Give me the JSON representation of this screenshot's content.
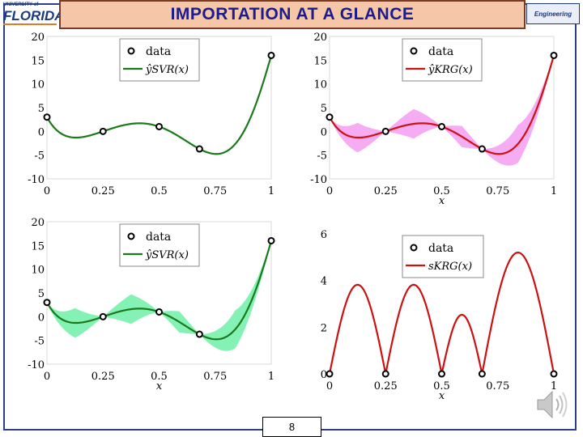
{
  "slide": {
    "title": "IMPORTATION AT A GLANCE",
    "page_number": "8",
    "logo_left_small": "UNIVERSITY of",
    "logo_left_big": "FLORIDA",
    "logo_right": "Engineering",
    "speaker_icon": "speaker-icon"
  },
  "chart_data": [
    {
      "type": "line",
      "id": "tl",
      "xticks": [
        "0",
        "0.25",
        "0.5",
        "0.75",
        "1"
      ],
      "yticks": [
        "20",
        "15",
        "10",
        "5",
        "0",
        "-5",
        "-10"
      ],
      "xlim": [
        0,
        1
      ],
      "ylim": [
        -10,
        20
      ],
      "xlabel": "",
      "legend": {
        "position": "top-center",
        "entries": [
          "data",
          "ŷSVR(x)"
        ]
      },
      "curve_color": "#1a7a1a",
      "band": false,
      "data_points": {
        "x": [
          0,
          0.25,
          0.5,
          0.68,
          1
        ],
        "y": [
          3,
          0,
          1,
          -3.7,
          16
        ]
      }
    },
    {
      "type": "line",
      "id": "tr",
      "xticks": [
        "0",
        "0.25",
        "0.5",
        "0.75",
        "1"
      ],
      "yticks": [
        "20",
        "15",
        "10",
        "5",
        "0",
        "-5",
        "-10"
      ],
      "xlim": [
        0,
        1
      ],
      "ylim": [
        -10,
        20
      ],
      "xlabel": "x",
      "legend": {
        "position": "top-center",
        "entries": [
          "data",
          "ŷKRG(x)"
        ]
      },
      "curve_color": "#cc1111",
      "band": true,
      "band_color": "#f59df0",
      "data_points": {
        "x": [
          0,
          0.25,
          0.5,
          0.68,
          1
        ],
        "y": [
          3,
          0,
          1,
          -3.7,
          16
        ]
      }
    },
    {
      "type": "line",
      "id": "bl",
      "xticks": [
        "0",
        "0.25",
        "0.5",
        "0.75",
        "1"
      ],
      "yticks": [
        "20",
        "15",
        "10",
        "5",
        "0",
        "-5",
        "-10"
      ],
      "xlim": [
        0,
        1
      ],
      "ylim": [
        -10,
        20
      ],
      "xlabel": "x",
      "legend": {
        "position": "top-center",
        "entries": [
          "data",
          "ŷSVR(x)"
        ]
      },
      "curve_color": "#1a7a1a",
      "band": true,
      "band_color": "#6ef0a8",
      "data_points": {
        "x": [
          0,
          0.25,
          0.5,
          0.68,
          1
        ],
        "y": [
          3,
          0,
          1,
          -3.7,
          16
        ]
      }
    },
    {
      "type": "line",
      "id": "br",
      "xticks": [
        "0",
        "0.25",
        "0.5",
        "0.75",
        "1"
      ],
      "yticks": [
        "6",
        "4",
        "2",
        "0"
      ],
      "xlim": [
        0,
        1
      ],
      "ylim": [
        0,
        6
      ],
      "xlabel": "x",
      "legend": {
        "position": "top-right",
        "entries": [
          "data",
          "sKRG(x)"
        ]
      },
      "curve_color": "#cc1111",
      "band": false,
      "data_points": {
        "x": [
          0,
          0.25,
          0.5,
          0.68,
          1
        ],
        "y": [
          0,
          0,
          0,
          0,
          0
        ]
      }
    }
  ]
}
